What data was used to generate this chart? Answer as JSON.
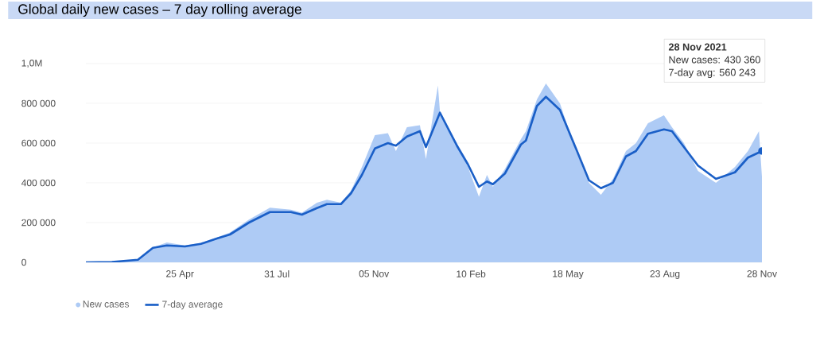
{
  "chart_data": {
    "type": "line",
    "title": "Global daily new cases – 7 day rolling average",
    "xlim": [
      "2020-01-22",
      "2021-11-28"
    ],
    "xticks": [
      {
        "value": "2020-04-25",
        "label": "25 Apr"
      },
      {
        "value": "2020-07-31",
        "label": "31 Jul"
      },
      {
        "value": "2020-11-05",
        "label": "05 Nov"
      },
      {
        "value": "2021-02-10",
        "label": "10 Feb"
      },
      {
        "value": "2021-05-18",
        "label": "18 May"
      },
      {
        "value": "2021-08-23",
        "label": "23 Aug"
      },
      {
        "value": "2021-11-28",
        "label": "28 Nov"
      }
    ],
    "ylim": [
      0,
      1000000
    ],
    "yticks": [
      0,
      {
        "value": 200000,
        "label": "200 000"
      },
      {
        "value": 400000,
        "label": "400 000"
      },
      {
        "value": 600000,
        "label": "600 000"
      },
      {
        "value": 800000,
        "label": "800 000"
      },
      {
        "value": 1000000,
        "label": "1,0M"
      }
    ],
    "grid": "y",
    "legend": "bottom left",
    "series": [
      {
        "name": "New cases",
        "type": "area",
        "color": "#aecbf5",
        "x": [
          "2020-01-22",
          "2020-02-17",
          "2020-03-14",
          "2020-03-29",
          "2020-04-12",
          "2020-04-30",
          "2020-05-16",
          "2020-06-01",
          "2020-06-14",
          "2020-07-03",
          "2020-07-24",
          "2020-08-14",
          "2020-08-25",
          "2020-09-09",
          "2020-09-19",
          "2020-10-03",
          "2020-10-13",
          "2020-10-24",
          "2020-11-06",
          "2020-11-19",
          "2020-11-27",
          "2020-12-08",
          "2020-12-21",
          "2020-12-27",
          "2021-01-08",
          "2021-01-10",
          "2021-01-27",
          "2021-02-07",
          "2021-02-18",
          "2021-02-26",
          "2021-03-04",
          "2021-03-16",
          "2021-04-01",
          "2021-04-06",
          "2021-04-17",
          "2021-04-26",
          "2021-05-10",
          "2021-05-26",
          "2021-06-08",
          "2021-06-20",
          "2021-07-02",
          "2021-07-15",
          "2021-07-25",
          "2021-08-06",
          "2021-08-22",
          "2021-08-30",
          "2021-09-11",
          "2021-09-25",
          "2021-10-13",
          "2021-11-01",
          "2021-11-14",
          "2021-11-25",
          "2021-11-28"
        ],
        "values": [
          0,
          2000,
          15000,
          75000,
          100000,
          85000,
          98000,
          125000,
          150000,
          215000,
          275000,
          265000,
          250000,
          300000,
          315000,
          300000,
          360000,
          480000,
          640000,
          650000,
          560000,
          680000,
          690000,
          520000,
          890000,
          760000,
          600000,
          480000,
          330000,
          440000,
          380000,
          470000,
          620000,
          660000,
          820000,
          900000,
          800000,
          560000,
          400000,
          340000,
          420000,
          560000,
          600000,
          700000,
          740000,
          680000,
          600000,
          460000,
          400000,
          480000,
          560000,
          660000,
          430360
        ]
      },
      {
        "name": "7-day average",
        "color": "#1a5fc7",
        "x": [
          "2020-01-22",
          "2020-02-17",
          "2020-03-14",
          "2020-03-29",
          "2020-04-12",
          "2020-04-30",
          "2020-05-16",
          "2020-06-01",
          "2020-06-14",
          "2020-07-03",
          "2020-07-24",
          "2020-08-14",
          "2020-08-25",
          "2020-09-09",
          "2020-09-19",
          "2020-10-03",
          "2020-10-13",
          "2020-10-24",
          "2020-11-06",
          "2020-11-19",
          "2020-11-27",
          "2020-12-08",
          "2020-12-21",
          "2020-12-27",
          "2021-01-10",
          "2021-01-27",
          "2021-02-07",
          "2021-02-18",
          "2021-02-26",
          "2021-03-04",
          "2021-03-16",
          "2021-04-01",
          "2021-04-06",
          "2021-04-17",
          "2021-04-26",
          "2021-05-10",
          "2021-05-26",
          "2021-06-08",
          "2021-06-20",
          "2021-07-02",
          "2021-07-15",
          "2021-07-25",
          "2021-08-06",
          "2021-08-22",
          "2021-08-30",
          "2021-09-11",
          "2021-09-25",
          "2021-10-13",
          "2021-11-01",
          "2021-11-14",
          "2021-11-28"
        ],
        "values": [
          0,
          2000,
          13000,
          73000,
          85000,
          80000,
          93000,
          120000,
          140000,
          200000,
          253000,
          253000,
          240000,
          273000,
          293000,
          293000,
          347000,
          440000,
          573000,
          600000,
          587000,
          633000,
          660000,
          580000,
          753000,
          587000,
          493000,
          380000,
          407000,
          393000,
          447000,
          593000,
          613000,
          787000,
          833000,
          767000,
          573000,
          413000,
          373000,
          400000,
          533000,
          560000,
          647000,
          669000,
          660000,
          580000,
          487000,
          420000,
          453000,
          527000,
          560243
        ]
      }
    ],
    "annotations": [
      "**28 Nov 2021**",
      "New cases: 430 360",
      "7-day avg: 560 243"
    ]
  }
}
